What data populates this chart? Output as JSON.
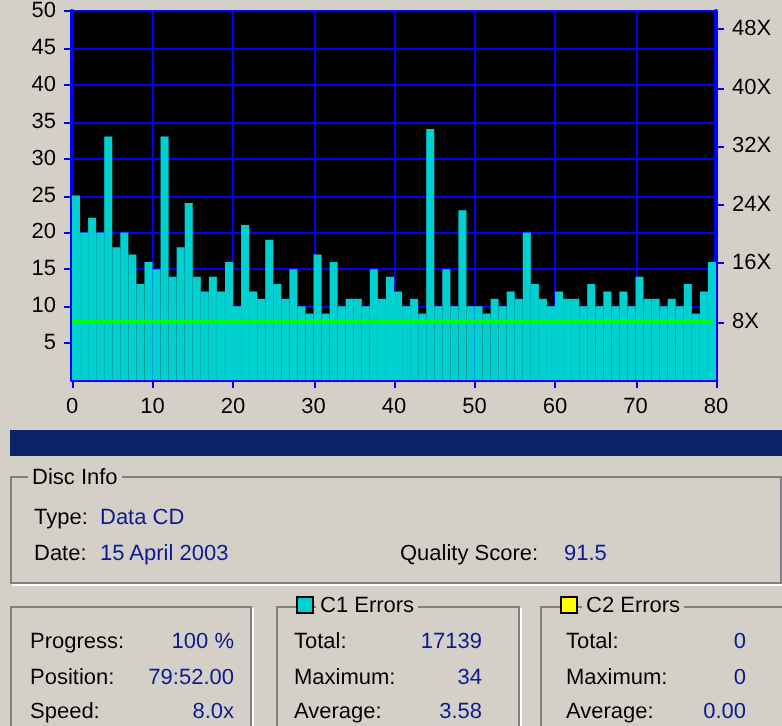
{
  "chart_data": [
    {
      "type": "bar",
      "x": [
        0.5,
        1.5,
        2.5,
        3.5,
        4.5,
        5.5,
        6.5,
        7.5,
        8.5,
        9.5,
        10.5,
        11.5,
        12.5,
        13.5,
        14.5,
        15.5,
        16.5,
        17.5,
        18.5,
        19.5,
        20.5,
        21.5,
        22.5,
        23.5,
        24.5,
        25.5,
        26.5,
        27.5,
        28.5,
        29.5,
        30.5,
        31.5,
        32.5,
        33.5,
        34.5,
        35.5,
        36.5,
        37.5,
        38.5,
        39.5,
        40.5,
        41.5,
        42.5,
        43.5,
        44.5,
        45.5,
        46.5,
        47.5,
        48.5,
        49.5,
        50.5,
        51.5,
        52.5,
        53.5,
        54.5,
        55.5,
        56.5,
        57.5,
        58.5,
        59.5,
        60.5,
        61.5,
        62.5,
        63.5,
        64.5,
        65.5,
        66.5,
        67.5,
        68.5,
        69.5,
        70.5,
        71.5,
        72.5,
        73.5,
        74.5,
        75.5,
        76.5,
        77.5,
        78.5,
        79.5
      ],
      "series": [
        {
          "color": "#00d0d0",
          "values": [
            25,
            20,
            22,
            20,
            33,
            18,
            20,
            17,
            13,
            16,
            15,
            33,
            14,
            18,
            24,
            14,
            12,
            14,
            12,
            16,
            10,
            21,
            12,
            11,
            19,
            13,
            11,
            15,
            10,
            9,
            17,
            9,
            16,
            10,
            11,
            11,
            10,
            15,
            11,
            14,
            12,
            10,
            11,
            9,
            34,
            10,
            15,
            10,
            23,
            10,
            10,
            9,
            11,
            10,
            12,
            11,
            20,
            13,
            11,
            10,
            12,
            11,
            11,
            10,
            13,
            10,
            12,
            10,
            12,
            10,
            14,
            11,
            11,
            10,
            11,
            10,
            13,
            9,
            12,
            16
          ]
        },
        {
          "type": "line",
          "axis": "y2",
          "x": [
            0,
            79.5
          ],
          "values": [
            8,
            8
          ],
          "color": "#00ff00"
        }
      ],
      "xlim": [
        0,
        80
      ],
      "xticks": [
        0,
        10,
        20,
        30,
        40,
        50,
        60,
        70,
        80
      ],
      "ylim": [
        0,
        50
      ],
      "yticks": [
        5,
        10,
        15,
        20,
        25,
        30,
        35,
        40,
        45,
        50
      ],
      "y2lim": [
        0,
        50.5
      ],
      "y2ticks": [
        {
          "value": 8,
          "label": "8X"
        },
        {
          "value": 16,
          "label": "16X"
        },
        {
          "value": 24,
          "label": "24X"
        },
        {
          "value": 32,
          "label": "32X"
        },
        {
          "value": 40,
          "label": "40X"
        },
        {
          "value": 48,
          "label": "48X"
        }
      ],
      "grid": true,
      "marker": "none"
    },
    {
      "type": "other",
      "annotations": [
        "Disc Info",
        "Type:",
        "Data CD",
        "Date:",
        "15 April 2003",
        "Quality Score:",
        "91.5",
        "Progress:",
        "100 %",
        "Position:",
        "79:52.00",
        "Speed:",
        "8.0x",
        "C1 Errors",
        "Total:",
        "17139",
        "Maximum:",
        "34",
        "Average:",
        "3.58",
        "C2 Errors",
        "Total:",
        "0",
        "Maximum:",
        "0",
        "Average:",
        "0.00"
      ]
    }
  ]
}
